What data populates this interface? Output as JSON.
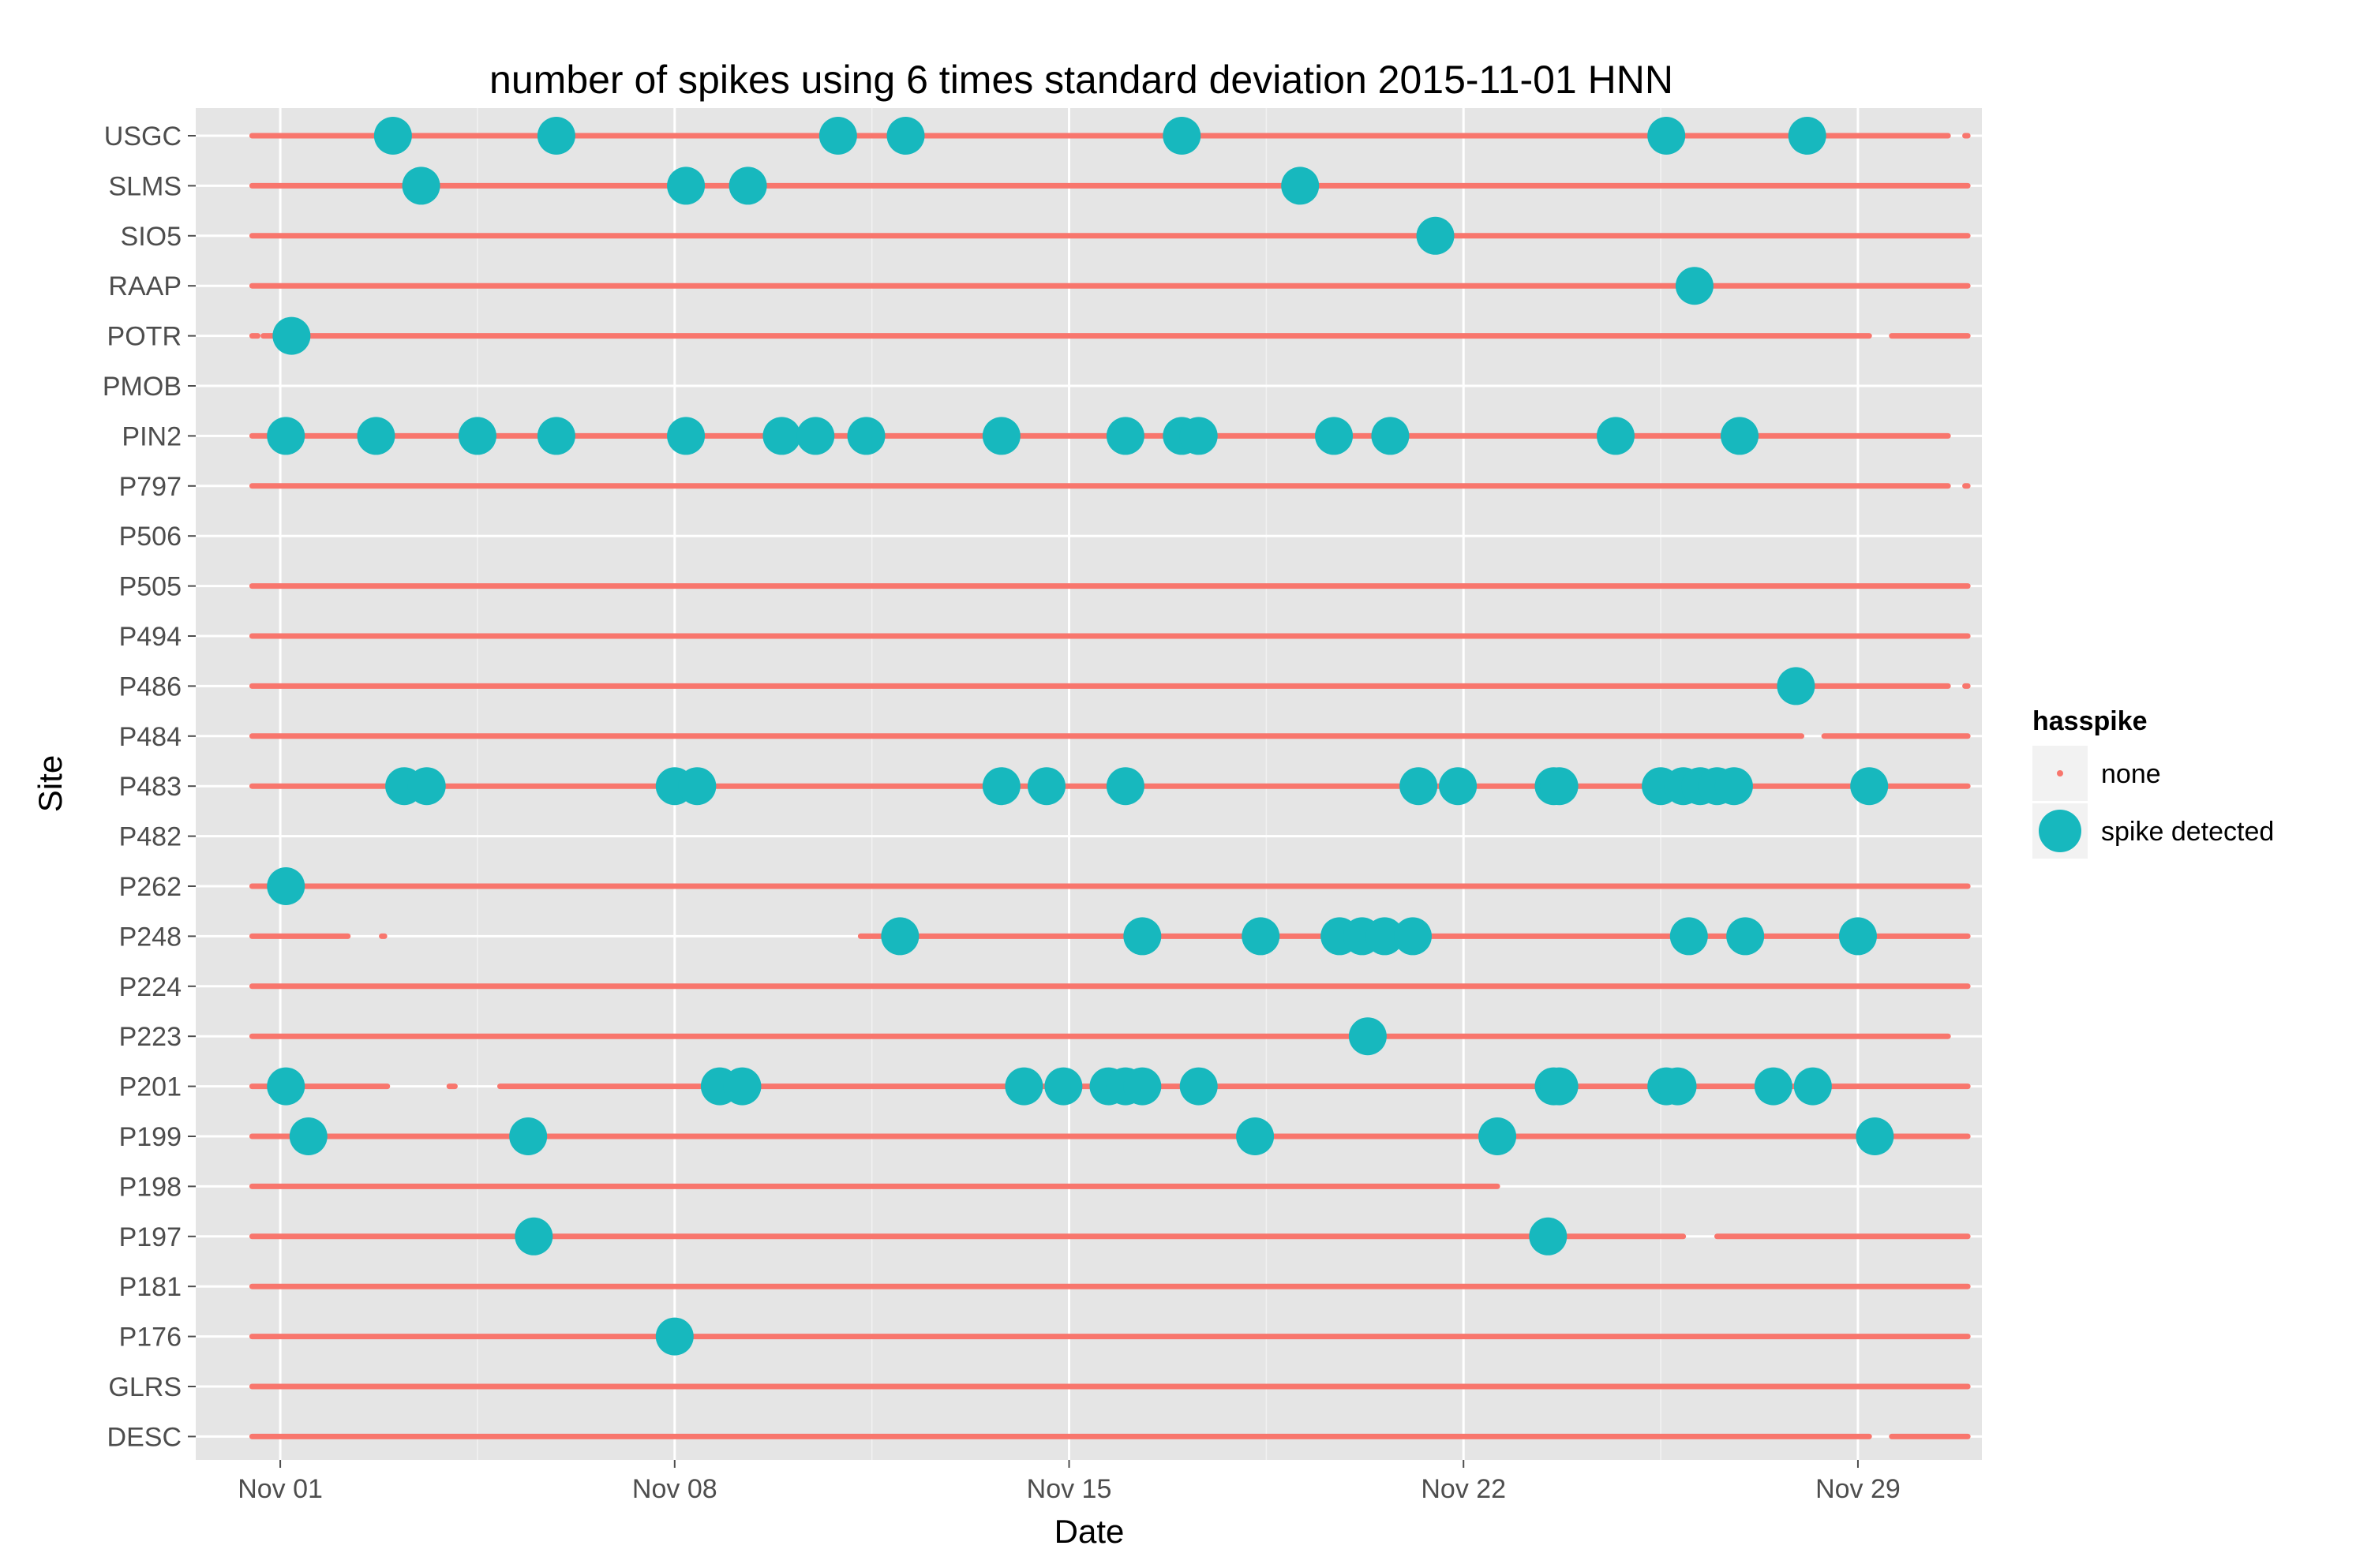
{
  "chart_data": {
    "type": "scatter",
    "title": "number of spikes using  6 times standard deviation 2015-11-01 HNN",
    "xlabel": "Date",
    "ylabel": "Site",
    "x_ticks": [
      {
        "day": 1,
        "label": "Nov 01"
      },
      {
        "day": 8,
        "label": "Nov 08"
      },
      {
        "day": 15,
        "label": "Nov 15"
      },
      {
        "day": 22,
        "label": "Nov 22"
      },
      {
        "day": 29,
        "label": "Nov 29"
      }
    ],
    "xlim": [
      -0.5,
      31.2
    ],
    "legend": {
      "title": "hasspike",
      "position": "right",
      "items": [
        {
          "key": "none",
          "label": "none",
          "color": "#F8766D"
        },
        {
          "key": "spike",
          "label": "spike detected",
          "color": "#00BFC4"
        }
      ]
    },
    "colors": {
      "none": "#F8766D",
      "spike": "#17B8BE",
      "panel": "#E5E5E5",
      "grid": "#FFFFFF"
    },
    "sites": [
      {
        "name": "USGC",
        "coverage": [
          [
            0.5,
            30.6
          ],
          [
            30.9,
            30.95
          ]
        ],
        "spikes": [
          3.0,
          5.9,
          10.9,
          12.1,
          17.0,
          25.6,
          28.1
        ]
      },
      {
        "name": "SLMS",
        "coverage": [
          [
            0.5,
            30.95
          ]
        ],
        "spikes": [
          3.5,
          8.2,
          9.3,
          19.1
        ]
      },
      {
        "name": "SIO5",
        "coverage": [
          [
            0.5,
            30.95
          ]
        ],
        "spikes": [
          21.5
        ]
      },
      {
        "name": "RAAP",
        "coverage": [
          [
            0.5,
            30.95
          ]
        ],
        "spikes": [
          26.1
        ]
      },
      {
        "name": "POTR",
        "coverage": [
          [
            0.5,
            0.6
          ],
          [
            0.7,
            29.2
          ],
          [
            29.6,
            30.95
          ]
        ],
        "spikes": [
          1.2
        ]
      },
      {
        "name": "PMOB",
        "coverage": [],
        "spikes": []
      },
      {
        "name": "PIN2",
        "coverage": [
          [
            0.5,
            30.6
          ]
        ],
        "spikes": [
          1.1,
          2.7,
          4.5,
          5.9,
          8.2,
          9.9,
          10.5,
          11.4,
          13.8,
          16.0,
          17.0,
          17.3,
          19.7,
          20.7,
          24.7,
          26.9
        ]
      },
      {
        "name": "P797",
        "coverage": [
          [
            0.5,
            30.6
          ],
          [
            30.9,
            30.95
          ]
        ],
        "spikes": []
      },
      {
        "name": "P506",
        "coverage": [],
        "spikes": []
      },
      {
        "name": "P505",
        "coverage": [
          [
            0.5,
            30.95
          ]
        ],
        "spikes": []
      },
      {
        "name": "P494",
        "coverage": [
          [
            0.5,
            30.95
          ]
        ],
        "spikes": []
      },
      {
        "name": "P486",
        "coverage": [
          [
            0.5,
            30.6
          ],
          [
            30.9,
            30.95
          ]
        ],
        "spikes": [
          27.9
        ]
      },
      {
        "name": "P484",
        "coverage": [
          [
            0.5,
            28.0
          ],
          [
            28.4,
            30.95
          ]
        ],
        "spikes": []
      },
      {
        "name": "P483",
        "coverage": [
          [
            0.5,
            30.95
          ]
        ],
        "spikes": [
          3.2,
          3.6,
          8.0,
          8.4,
          13.8,
          14.6,
          16.0,
          21.2,
          21.9,
          23.6,
          23.7,
          25.5,
          25.9,
          26.2,
          26.5,
          26.8,
          29.2
        ]
      },
      {
        "name": "P482",
        "coverage": [],
        "spikes": []
      },
      {
        "name": "P262",
        "coverage": [
          [
            0.5,
            30.95
          ]
        ],
        "spikes": [
          1.1
        ]
      },
      {
        "name": "P248",
        "coverage": [
          [
            0.5,
            2.2
          ],
          [
            2.8,
            2.85
          ],
          [
            11.3,
            30.95
          ]
        ],
        "spikes": [
          12.0,
          16.3,
          18.4,
          19.8,
          20.2,
          20.6,
          21.1,
          26.0,
          27.0,
          29.0
        ]
      },
      {
        "name": "P224",
        "coverage": [
          [
            0.5,
            30.95
          ]
        ],
        "spikes": []
      },
      {
        "name": "P223",
        "coverage": [
          [
            0.5,
            30.6
          ]
        ],
        "spikes": [
          20.3
        ]
      },
      {
        "name": "P201",
        "coverage": [
          [
            0.5,
            2.9
          ],
          [
            4.0,
            4.1
          ],
          [
            4.9,
            30.95
          ]
        ],
        "spikes": [
          1.1,
          8.8,
          9.2,
          14.2,
          14.9,
          15.7,
          16.0,
          16.3,
          17.3,
          23.6,
          23.7,
          25.6,
          25.8,
          27.5,
          28.2
        ]
      },
      {
        "name": "P199",
        "coverage": [
          [
            0.5,
            30.95
          ]
        ],
        "spikes": [
          1.5,
          5.4,
          18.3,
          22.6,
          29.3
        ]
      },
      {
        "name": "P198",
        "coverage": [
          [
            0.5,
            22.6
          ]
        ],
        "spikes": []
      },
      {
        "name": "P197",
        "coverage": [
          [
            0.5,
            25.9
          ],
          [
            26.5,
            30.95
          ]
        ],
        "spikes": [
          5.5,
          23.5
        ]
      },
      {
        "name": "P181",
        "coverage": [
          [
            0.5,
            30.95
          ]
        ],
        "spikes": []
      },
      {
        "name": "P176",
        "coverage": [
          [
            0.5,
            30.95
          ]
        ],
        "spikes": [
          8.0
        ]
      },
      {
        "name": "GLRS",
        "coverage": [
          [
            0.5,
            30.95
          ]
        ],
        "spikes": []
      },
      {
        "name": "DESC",
        "coverage": [
          [
            0.5,
            29.2
          ],
          [
            29.6,
            30.95
          ]
        ],
        "spikes": []
      }
    ]
  }
}
